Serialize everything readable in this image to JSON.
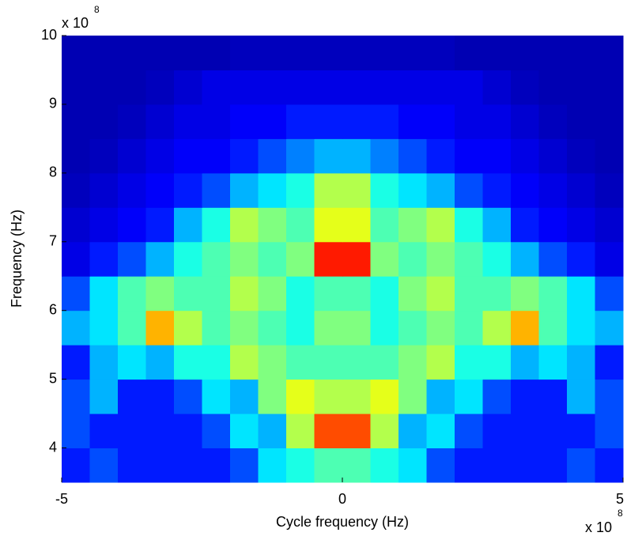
{
  "chart_data": {
    "type": "heatmap",
    "xlabel": "Cycle frequency (Hz)",
    "ylabel": "Frequency (Hz)",
    "x_exponent_base": "x 10",
    "x_exponent_power": "8",
    "y_exponent_base": "x 10",
    "y_exponent_power": "8",
    "colormap": "jet",
    "clim": [
      0,
      1
    ],
    "xlim": [
      -5,
      5
    ],
    "xticks": [
      -5,
      0,
      5
    ],
    "ylim": [
      3.5,
      10
    ],
    "yticks": [
      4,
      5,
      6,
      7,
      8,
      9,
      10
    ],
    "x": [
      -4.75,
      -4.25,
      -3.75,
      -3.25,
      -2.75,
      -2.25,
      -1.75,
      -1.25,
      -0.75,
      -0.25,
      0.25,
      0.75,
      1.25,
      1.75,
      2.25,
      2.75,
      3.25,
      3.75,
      4.25,
      4.75
    ],
    "y": [
      3.75,
      4.25,
      4.75,
      5.25,
      5.75,
      6.25,
      6.75,
      7.25,
      7.75,
      8.25,
      8.75,
      9.25,
      9.75
    ],
    "z": [
      [
        0.15,
        0.2,
        0.15,
        0.15,
        0.15,
        0.15,
        0.2,
        0.35,
        0.4,
        0.45,
        0.45,
        0.4,
        0.35,
        0.2,
        0.15,
        0.15,
        0.15,
        0.15,
        0.2,
        0.15
      ],
      [
        0.2,
        0.15,
        0.15,
        0.15,
        0.15,
        0.2,
        0.35,
        0.3,
        0.55,
        0.8,
        0.8,
        0.55,
        0.3,
        0.35,
        0.2,
        0.15,
        0.15,
        0.15,
        0.15,
        0.2
      ],
      [
        0.2,
        0.3,
        0.15,
        0.15,
        0.2,
        0.35,
        0.3,
        0.5,
        0.6,
        0.55,
        0.55,
        0.6,
        0.5,
        0.3,
        0.35,
        0.2,
        0.15,
        0.15,
        0.3,
        0.2
      ],
      [
        0.15,
        0.3,
        0.35,
        0.3,
        0.4,
        0.4,
        0.55,
        0.5,
        0.45,
        0.45,
        0.45,
        0.45,
        0.5,
        0.55,
        0.4,
        0.4,
        0.3,
        0.35,
        0.3,
        0.15
      ],
      [
        0.3,
        0.35,
        0.45,
        0.7,
        0.55,
        0.45,
        0.5,
        0.45,
        0.4,
        0.5,
        0.5,
        0.4,
        0.45,
        0.5,
        0.45,
        0.55,
        0.7,
        0.45,
        0.35,
        0.3
      ],
      [
        0.2,
        0.35,
        0.45,
        0.5,
        0.45,
        0.45,
        0.55,
        0.5,
        0.4,
        0.45,
        0.45,
        0.4,
        0.5,
        0.55,
        0.45,
        0.45,
        0.5,
        0.45,
        0.35,
        0.2
      ],
      [
        0.1,
        0.15,
        0.2,
        0.3,
        0.4,
        0.45,
        0.5,
        0.45,
        0.5,
        0.85,
        0.85,
        0.5,
        0.45,
        0.5,
        0.45,
        0.4,
        0.3,
        0.2,
        0.15,
        0.1
      ],
      [
        0.08,
        0.1,
        0.12,
        0.15,
        0.3,
        0.4,
        0.55,
        0.5,
        0.45,
        0.6,
        0.6,
        0.45,
        0.5,
        0.55,
        0.4,
        0.3,
        0.15,
        0.12,
        0.1,
        0.08
      ],
      [
        0.06,
        0.08,
        0.1,
        0.12,
        0.15,
        0.2,
        0.3,
        0.35,
        0.4,
        0.55,
        0.55,
        0.4,
        0.35,
        0.3,
        0.2,
        0.15,
        0.12,
        0.1,
        0.08,
        0.06
      ],
      [
        0.05,
        0.06,
        0.08,
        0.1,
        0.12,
        0.12,
        0.15,
        0.2,
        0.25,
        0.3,
        0.3,
        0.25,
        0.2,
        0.15,
        0.12,
        0.12,
        0.1,
        0.08,
        0.06,
        0.05
      ],
      [
        0.05,
        0.05,
        0.06,
        0.08,
        0.1,
        0.1,
        0.12,
        0.12,
        0.15,
        0.15,
        0.15,
        0.15,
        0.12,
        0.12,
        0.1,
        0.1,
        0.08,
        0.06,
        0.05,
        0.05
      ],
      [
        0.05,
        0.05,
        0.05,
        0.06,
        0.08,
        0.1,
        0.1,
        0.1,
        0.1,
        0.1,
        0.1,
        0.1,
        0.1,
        0.1,
        0.1,
        0.08,
        0.06,
        0.05,
        0.05,
        0.05
      ],
      [
        0.05,
        0.05,
        0.05,
        0.05,
        0.05,
        0.05,
        0.06,
        0.06,
        0.06,
        0.06,
        0.06,
        0.06,
        0.06,
        0.06,
        0.05,
        0.05,
        0.05,
        0.05,
        0.05,
        0.05
      ]
    ]
  }
}
